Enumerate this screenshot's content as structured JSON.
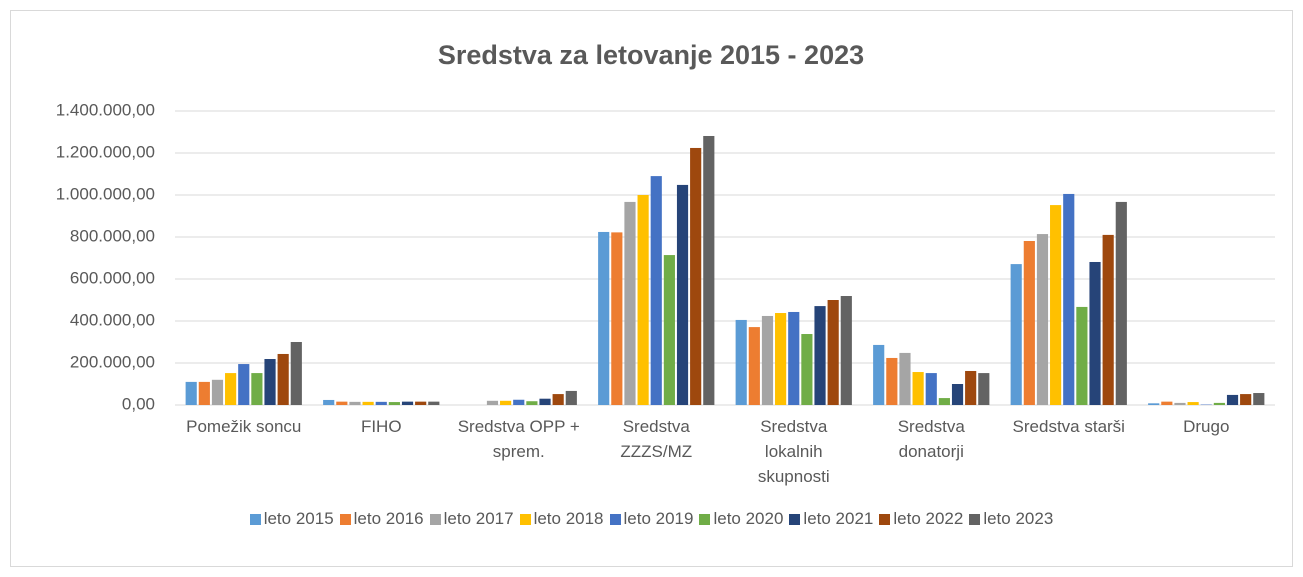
{
  "chart_data": {
    "type": "bar",
    "title": "Sredstva za letovanje 2015 - 2023",
    "categories": [
      "Pomežik soncu",
      "FIHO",
      "Sredstva OPP + sprem.",
      "Sredstva ZZZS/MZ",
      "Sredstva lokalnih skupnosti",
      "Sredstva donatorji",
      "Sredstva starši",
      "Drugo"
    ],
    "series": [
      {
        "name": "leto 2015",
        "color": "#5b9bd5",
        "values": [
          110000,
          24000,
          0,
          824000,
          405000,
          286000,
          671000,
          8000
        ]
      },
      {
        "name": "leto 2016",
        "color": "#ed7d31",
        "values": [
          110000,
          16000,
          0,
          822000,
          371000,
          224000,
          781000,
          16000
        ]
      },
      {
        "name": "leto 2017",
        "color": "#a5a5a5",
        "values": [
          120000,
          15000,
          20000,
          967000,
          424000,
          248000,
          814000,
          10000
        ]
      },
      {
        "name": "leto 2018",
        "color": "#ffc000",
        "values": [
          152000,
          15000,
          20000,
          1000000,
          438000,
          157000,
          952000,
          14000
        ]
      },
      {
        "name": "leto 2019",
        "color": "#4472c4",
        "values": [
          195000,
          15000,
          25000,
          1090000,
          443000,
          152000,
          1005000,
          2000
        ]
      },
      {
        "name": "leto 2020",
        "color": "#70ad47",
        "values": [
          152000,
          14000,
          18000,
          714000,
          338000,
          33000,
          467000,
          10000
        ]
      },
      {
        "name": "leto 2021",
        "color": "#264478",
        "values": [
          219000,
          16000,
          30000,
          1048000,
          471000,
          100000,
          681000,
          48000
        ]
      },
      {
        "name": "leto 2022",
        "color": "#9e480e",
        "values": [
          243000,
          16000,
          52000,
          1224000,
          500000,
          162000,
          810000,
          52000
        ]
      },
      {
        "name": "leto 2023",
        "color": "#636363",
        "values": [
          300000,
          16000,
          67000,
          1281000,
          519000,
          152000,
          967000,
          57000
        ]
      }
    ],
    "ylim": [
      0,
      1400000
    ],
    "yticks": [
      {
        "value": 0,
        "label": "0,00"
      },
      {
        "value": 200000,
        "label": "200.000,00"
      },
      {
        "value": 400000,
        "label": "400.000,00"
      },
      {
        "value": 600000,
        "label": "600.000,00"
      },
      {
        "value": 800000,
        "label": "800.000,00"
      },
      {
        "value": 1000000,
        "label": "1.000.000,00"
      },
      {
        "value": 1200000,
        "label": "1.200.000,00"
      },
      {
        "value": 1400000,
        "label": "1.400.000,00"
      }
    ],
    "grid": true,
    "legend": "bottom"
  }
}
